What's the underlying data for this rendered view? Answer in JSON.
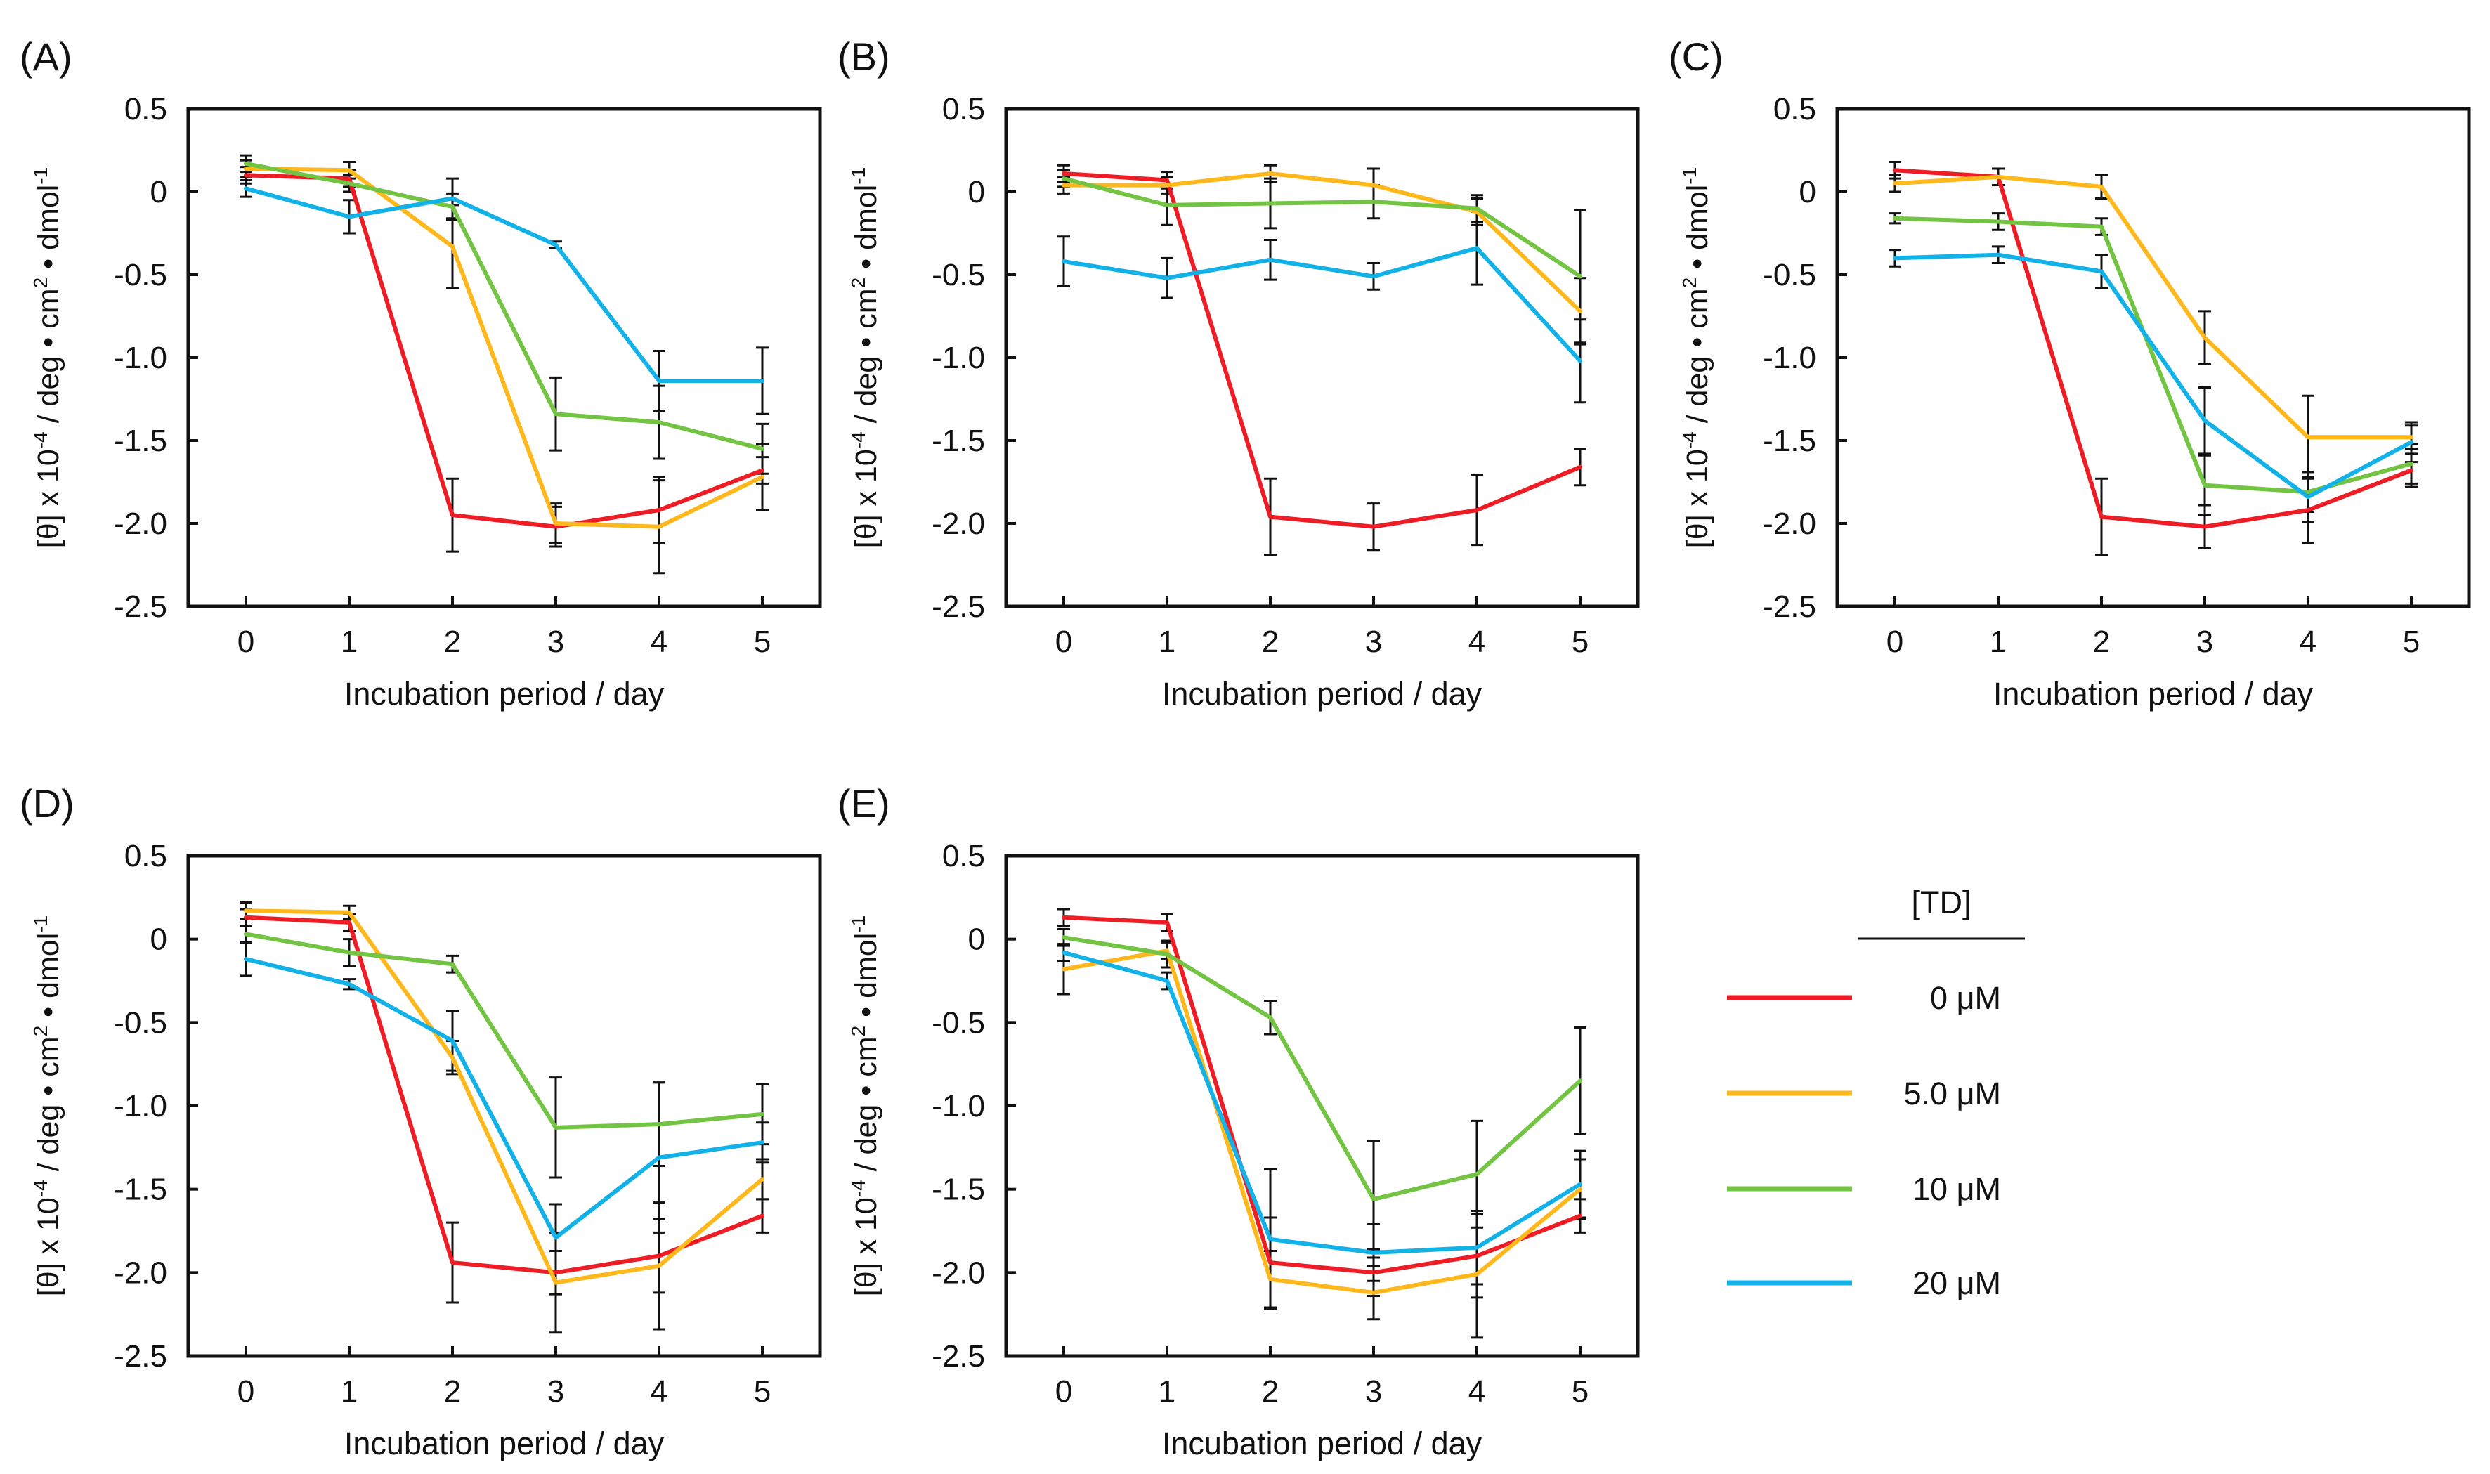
{
  "figure_title": "",
  "legend": {
    "title": "[TD]",
    "entries": [
      {
        "label": "0 μM",
        "color": "#ee1c25"
      },
      {
        "label": "5.0 μM",
        "color": "#ffb81c"
      },
      {
        "label": "10 μM",
        "color": "#72c442"
      },
      {
        "label": "20 μM",
        "color": "#12b2e8"
      }
    ]
  },
  "chart_data": [
    {
      "panel": "(A)",
      "type": "line",
      "xlabel": "Incubation period / day",
      "ylabel": {
        "pre": "[θ] x 10",
        "sup1": "-4",
        "mid": " / deg • cm",
        "sup2": "2",
        "post": " • dmol",
        "sup3": "-1"
      },
      "x": [
        0,
        1,
        2,
        3,
        4,
        5
      ],
      "xticks": [
        "0",
        "1",
        "2",
        "3",
        "4",
        "5"
      ],
      "ylim": [
        -2.5,
        0.5
      ],
      "yticks": [
        "0.5",
        "0",
        "-0.5",
        "-1.0",
        "-1.5",
        "-2.0",
        "-2.5"
      ],
      "series": [
        {
          "name": "0 μM",
          "color": "#ee1c25",
          "values": [
            0.1,
            0.08,
            -1.95,
            -2.02,
            -1.92,
            -1.68
          ],
          "errors": [
            0.05,
            0.05,
            0.22,
            0.12,
            0.2,
            0.08
          ]
        },
        {
          "name": "5.0 μM",
          "color": "#ffb81c",
          "values": [
            0.14,
            0.13,
            -0.33,
            -2.0,
            -2.02,
            -1.72
          ],
          "errors": [
            0.05,
            0.05,
            0.25,
            0.12,
            0.28,
            0.2
          ]
        },
        {
          "name": "10 μM",
          "color": "#72c442",
          "values": [
            0.17,
            0.05,
            -0.09,
            -1.34,
            -1.39,
            -1.55
          ],
          "errors": [
            0.05,
            0.05,
            0.08,
            0.22,
            0.22,
            0.15
          ]
        },
        {
          "name": "20 μM",
          "color": "#12b2e8",
          "values": [
            0.02,
            -0.15,
            -0.04,
            -0.32,
            -1.14,
            -1.14
          ],
          "errors": [
            0.05,
            0.1,
            0.12,
            0.02,
            0.18,
            0.2
          ]
        }
      ]
    },
    {
      "panel": "(B)",
      "type": "line",
      "xlabel": "Incubation period / day",
      "ylabel": {
        "pre": "[θ] x 10",
        "sup1": "-4",
        "mid": " / deg • cm",
        "sup2": "2",
        "post": " • dmol",
        "sup3": "-1"
      },
      "x": [
        0,
        1,
        2,
        3,
        4,
        5
      ],
      "xticks": [
        "0",
        "1",
        "2",
        "3",
        "4",
        "5"
      ],
      "ylim": [
        -2.5,
        0.5
      ],
      "yticks": [
        "0.5",
        "0",
        "-0.5",
        "-1.0",
        "-1.5",
        "-2.0",
        "-2.5"
      ],
      "series": [
        {
          "name": "0 μM",
          "color": "#ee1c25",
          "values": [
            0.11,
            0.07,
            -1.96,
            -2.02,
            -1.92,
            -1.66
          ],
          "errors": [
            0.05,
            0.05,
            0.23,
            0.14,
            0.21,
            0.11
          ]
        },
        {
          "name": "5.0 μM",
          "color": "#ffb81c",
          "values": [
            0.04,
            0.04,
            0.11,
            0.04,
            -0.12,
            -0.72
          ],
          "errors": [
            0.05,
            0.05,
            0.05,
            0.1,
            0.08,
            0.2
          ]
        },
        {
          "name": "10 μM",
          "color": "#72c442",
          "values": [
            0.08,
            -0.08,
            -0.07,
            -0.06,
            -0.1,
            -0.51
          ],
          "errors": [
            0.05,
            0.12,
            0.15,
            0.1,
            0.08,
            0.4
          ]
        },
        {
          "name": "20 μM",
          "color": "#12b2e8",
          "values": [
            -0.42,
            -0.52,
            -0.41,
            -0.51,
            -0.34,
            -1.02
          ],
          "errors": [
            0.15,
            0.12,
            0.12,
            0.08,
            0.22,
            0.25
          ]
        }
      ]
    },
    {
      "panel": "(C)",
      "type": "line",
      "xlabel": "Incubation period / day",
      "ylabel": {
        "pre": "[θ] x 10",
        "sup1": "-4",
        "mid": " / deg • cm",
        "sup2": "2",
        "post": " • dmol",
        "sup3": "-1"
      },
      "x": [
        0,
        1,
        2,
        3,
        4,
        5
      ],
      "xticks": [
        "0",
        "1",
        "2",
        "3",
        "4",
        "5"
      ],
      "ylim": [
        -2.5,
        0.5
      ],
      "yticks": [
        "0.5",
        "0",
        "-0.5",
        "-1.0",
        "-1.5",
        "-2.0",
        "-2.5"
      ],
      "series": [
        {
          "name": "0 μM",
          "color": "#ee1c25",
          "values": [
            0.13,
            0.09,
            -1.96,
            -2.02,
            -1.92,
            -1.68
          ],
          "errors": [
            0.05,
            0.05,
            0.23,
            0.13,
            0.2,
            0.1
          ]
        },
        {
          "name": "5.0 μM",
          "color": "#ffb81c",
          "values": [
            0.05,
            0.09,
            0.03,
            -0.88,
            -1.48,
            -1.48
          ],
          "errors": [
            0.05,
            0.05,
            0.07,
            0.16,
            0.25,
            0.07
          ]
        },
        {
          "name": "10 μM",
          "color": "#72c442",
          "values": [
            -0.16,
            -0.18,
            -0.21,
            -1.77,
            -1.81,
            -1.64
          ],
          "errors": [
            0.03,
            0.05,
            0.05,
            0.18,
            0.12,
            0.12
          ]
        },
        {
          "name": "20 μM",
          "color": "#12b2e8",
          "values": [
            -0.4,
            -0.38,
            -0.48,
            -1.38,
            -1.84,
            -1.51
          ],
          "errors": [
            0.05,
            0.05,
            0.1,
            0.2,
            0.15,
            0.12
          ]
        }
      ]
    },
    {
      "panel": "(D)",
      "type": "line",
      "xlabel": "Incubation period / day",
      "ylabel": {
        "pre": "[θ] x 10",
        "sup1": "-4",
        "mid": " / deg • cm",
        "sup2": "2",
        "post": " • dmol",
        "sup3": "-1"
      },
      "x": [
        0,
        1,
        2,
        3,
        4,
        5
      ],
      "xticks": [
        "0",
        "1",
        "2",
        "3",
        "4",
        "5"
      ],
      "ylim": [
        -2.5,
        0.5
      ],
      "yticks": [
        "0.5",
        "0",
        "-0.5",
        "-1.0",
        "-1.5",
        "-2.0",
        "-2.5"
      ],
      "series": [
        {
          "name": "0 μM",
          "color": "#ee1c25",
          "values": [
            0.13,
            0.1,
            -1.94,
            -2.0,
            -1.9,
            -1.66
          ],
          "errors": [
            0.05,
            0.05,
            0.24,
            0.13,
            0.22,
            0.1
          ]
        },
        {
          "name": "5.0 μM",
          "color": "#ffb81c",
          "values": [
            0.17,
            0.16,
            -0.71,
            -2.06,
            -1.96,
            -1.44
          ],
          "errors": [
            0.05,
            0.04,
            0.1,
            0.3,
            0.38,
            0.12
          ]
        },
        {
          "name": "10 μM",
          "color": "#72c442",
          "values": [
            0.03,
            -0.08,
            -0.15,
            -1.13,
            -1.11,
            -1.05
          ],
          "errors": [
            0.05,
            0.08,
            0.05,
            0.3,
            0.25,
            0.18
          ]
        },
        {
          "name": "20 μM",
          "color": "#12b2e8",
          "values": [
            -0.12,
            -0.27,
            -0.61,
            -1.79,
            -1.31,
            -1.22
          ],
          "errors": [
            0.1,
            0.03,
            0.18,
            0.2,
            0.45,
            0.12
          ]
        }
      ]
    },
    {
      "panel": "(E)",
      "type": "line",
      "xlabel": "Incubation period / day",
      "ylabel": {
        "pre": "[θ] x 10",
        "sup1": "-4",
        "mid": " / deg • cm",
        "sup2": "2",
        "post": " • dmol",
        "sup3": "-1"
      },
      "x": [
        0,
        1,
        2,
        3,
        4,
        5
      ],
      "xticks": [
        "0",
        "1",
        "2",
        "3",
        "4",
        "5"
      ],
      "ylim": [
        -2.5,
        0.5
      ],
      "yticks": [
        "0.5",
        "0",
        "-0.5",
        "-1.0",
        "-1.5",
        "-2.0",
        "-2.5"
      ],
      "series": [
        {
          "name": "0 μM",
          "color": "#ee1c25",
          "values": [
            0.13,
            0.1,
            -1.94,
            -2.0,
            -1.9,
            -1.66
          ],
          "errors": [
            0.05,
            0.05,
            0.27,
            0.14,
            0.25,
            0.1
          ]
        },
        {
          "name": "5.0 μM",
          "color": "#ffb81c",
          "values": [
            -0.18,
            -0.07,
            -2.04,
            -2.12,
            -2.01,
            -1.5
          ],
          "errors": [
            0.15,
            0.05,
            0.17,
            0.16,
            0.38,
            0.18
          ]
        },
        {
          "name": "10 μM",
          "color": "#72c442",
          "values": [
            0.01,
            -0.09,
            -0.47,
            -1.56,
            -1.41,
            -0.85
          ],
          "errors": [
            0.05,
            0.08,
            0.1,
            0.35,
            0.32,
            0.32
          ]
        },
        {
          "name": "20 μM",
          "color": "#12b2e8",
          "values": [
            -0.08,
            -0.25,
            -1.8,
            -1.88,
            -1.85,
            -1.47
          ],
          "errors": [
            0.05,
            0.05,
            0.42,
            0.17,
            0.22,
            0.2
          ]
        }
      ]
    }
  ]
}
